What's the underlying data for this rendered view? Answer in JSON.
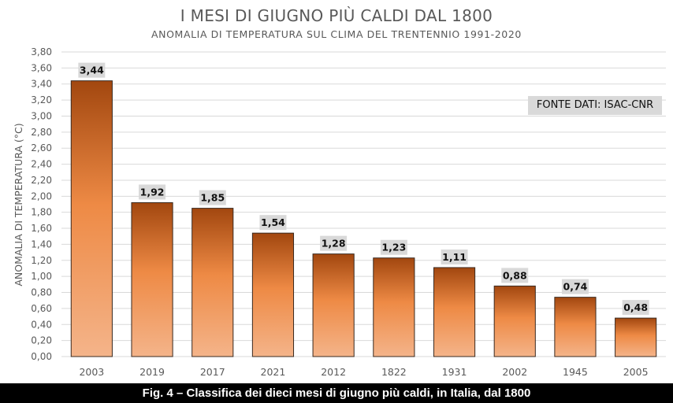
{
  "chart_data": {
    "type": "bar",
    "title": "I MESI DI GIUGNO PIÙ CALDI DAL 1800",
    "subtitle": "ANOMALIA DI TEMPERATURA  SUL CLIMA DEL TRENTENNIO  1991-2020",
    "ylabel": "ANOMALIA DI TEMPERATURA (°C)",
    "xlabel": "",
    "categories": [
      "2003",
      "2019",
      "2017",
      "2021",
      "2012",
      "1822",
      "1931",
      "2002",
      "1945",
      "2005"
    ],
    "values": [
      3.44,
      1.92,
      1.85,
      1.54,
      1.28,
      1.23,
      1.11,
      0.88,
      0.74,
      0.48
    ],
    "value_labels": [
      "3,44",
      "1,92",
      "1,85",
      "1,54",
      "1,28",
      "1,23",
      "1,11",
      "0,88",
      "0,74",
      "0,48"
    ],
    "ylim": [
      0,
      3.8
    ],
    "yticks": [
      0,
      0.2,
      0.4,
      0.6,
      0.8,
      1.0,
      1.2,
      1.4,
      1.6,
      1.8,
      2.0,
      2.2,
      2.4,
      2.6,
      2.8,
      3.0,
      3.2,
      3.4,
      3.6,
      3.8
    ],
    "ytick_labels": [
      "0,00",
      "0,20",
      "0,40",
      "0,60",
      "0,80",
      "1,00",
      "1,20",
      "1,40",
      "1,60",
      "1,80",
      "2,00",
      "2,20",
      "2,40",
      "2,60",
      "2,80",
      "3,00",
      "3,20",
      "3,40",
      "3,60",
      "3,80"
    ],
    "grid": true,
    "source_note": "FONTE DATI: ISAC-CNR",
    "colors": {
      "bar_top": "#a2470f",
      "bar_mid": "#ee8a45",
      "bar_bottom": "#f4b48a",
      "bar_stroke": "#3a2a20",
      "label_bg": "#d9d9d9",
      "grid": "#d9d9d9",
      "text": "#595959"
    }
  },
  "caption": "Fig. 4 – Classifica dei dieci mesi di giugno più caldi, in Italia, dal 1800"
}
